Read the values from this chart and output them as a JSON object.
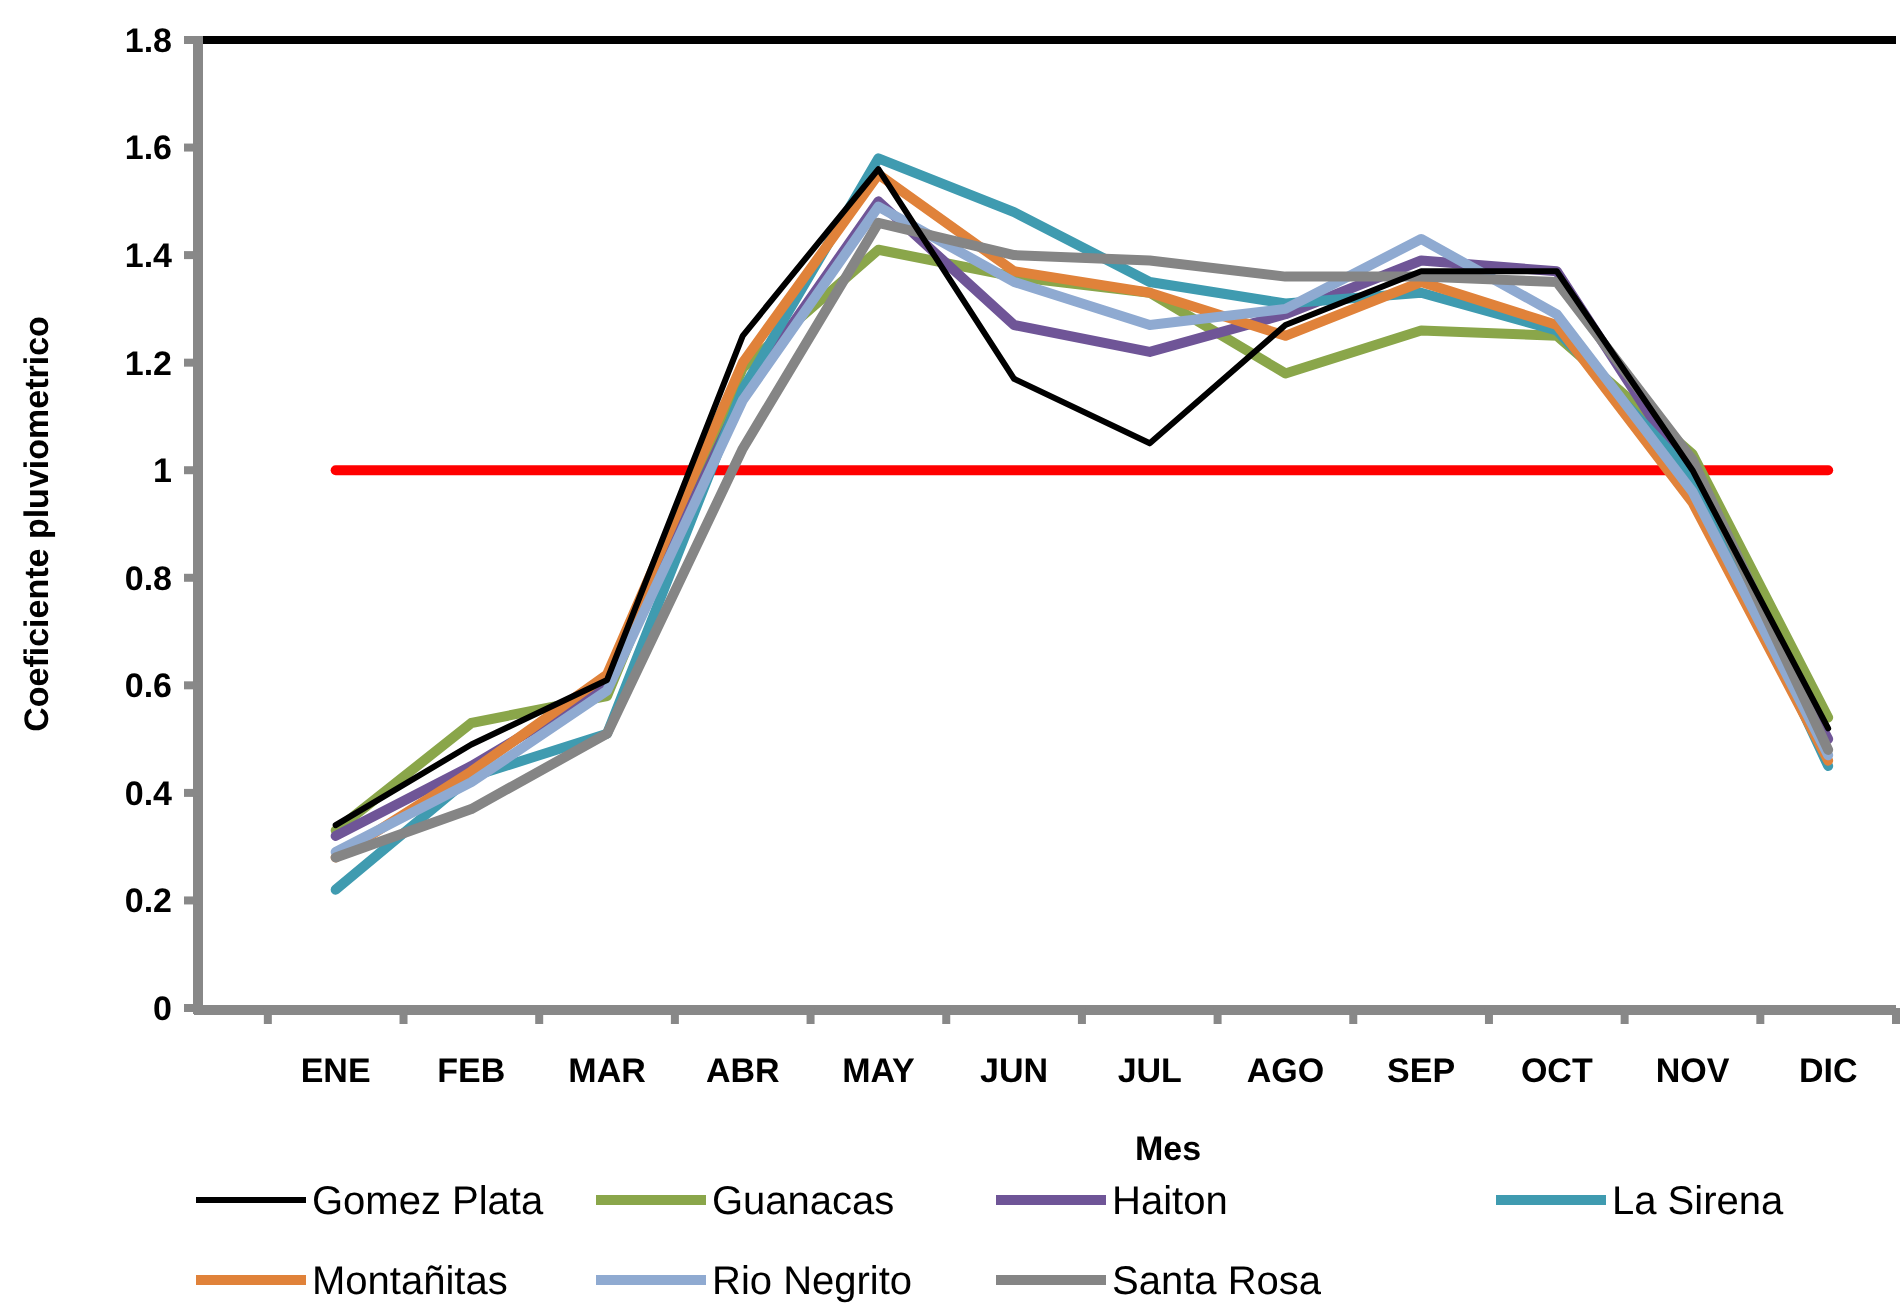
{
  "chart_data": {
    "type": "line",
    "xlabel": "Mes",
    "ylabel": "Coeficiente pluviometrico",
    "categories": [
      "ENE",
      "FEB",
      "MAR",
      "ABR",
      "MAY",
      "JUN",
      "JUL",
      "AGO",
      "SEP",
      "OCT",
      "NOV",
      "DIC"
    ],
    "ylim": [
      0,
      1.8
    ],
    "yticks": [
      {
        "value": 0,
        "label": "0"
      },
      {
        "value": 0.2,
        "label": "0.2"
      },
      {
        "value": 0.4,
        "label": "0.4"
      },
      {
        "value": 0.6,
        "label": "0.6"
      },
      {
        "value": 0.8,
        "label": "0.8"
      },
      {
        "value": 1,
        "label": "1"
      },
      {
        "value": 1.2,
        "label": "1.2"
      },
      {
        "value": 1.4,
        "label": "1.4"
      },
      {
        "value": 1.6,
        "label": "1.6"
      },
      {
        "value": 1.8,
        "label": "1.8"
      }
    ],
    "grid": false,
    "legend": "bottom",
    "marker": "none",
    "line_style": "solid",
    "ref_lines": [
      {
        "axis": "y",
        "value": 1,
        "color": "#ff0000"
      }
    ],
    "series": [
      {
        "name": "Gomez Plata",
        "color": "#000000",
        "values": [
          0.34,
          0.49,
          0.61,
          1.25,
          1.56,
          1.17,
          1.05,
          1.27,
          1.37,
          1.37,
          1.0,
          0.52
        ]
      },
      {
        "name": "Guanacas",
        "color": "#8aa64a",
        "values": [
          0.33,
          0.53,
          0.58,
          1.19,
          1.41,
          1.36,
          1.33,
          1.18,
          1.26,
          1.25,
          1.03,
          0.54
        ]
      },
      {
        "name": "Haiton",
        "color": "#6f5597",
        "values": [
          0.32,
          0.45,
          0.6,
          1.14,
          1.5,
          1.27,
          1.22,
          1.29,
          1.39,
          1.37,
          0.98,
          0.5
        ]
      },
      {
        "name": "La Sirena",
        "color": "#3f9bb0",
        "values": [
          0.22,
          0.43,
          0.51,
          1.15,
          1.58,
          1.48,
          1.35,
          1.31,
          1.33,
          1.26,
          0.99,
          0.45
        ]
      },
      {
        "name": "Montañitas",
        "color": "#e0823a",
        "values": [
          0.28,
          0.44,
          0.62,
          1.2,
          1.55,
          1.37,
          1.33,
          1.25,
          1.35,
          1.27,
          0.94,
          0.46
        ]
      },
      {
        "name": "Rio Negrito",
        "color": "#8faad1",
        "values": [
          0.29,
          0.42,
          0.59,
          1.13,
          1.49,
          1.35,
          1.27,
          1.3,
          1.43,
          1.29,
          0.96,
          0.47
        ]
      },
      {
        "name": "Santa Rosa",
        "color": "#858585",
        "values": [
          0.28,
          0.37,
          0.51,
          1.04,
          1.46,
          1.4,
          1.39,
          1.36,
          1.36,
          1.35,
          1.02,
          0.48
        ]
      }
    ]
  }
}
